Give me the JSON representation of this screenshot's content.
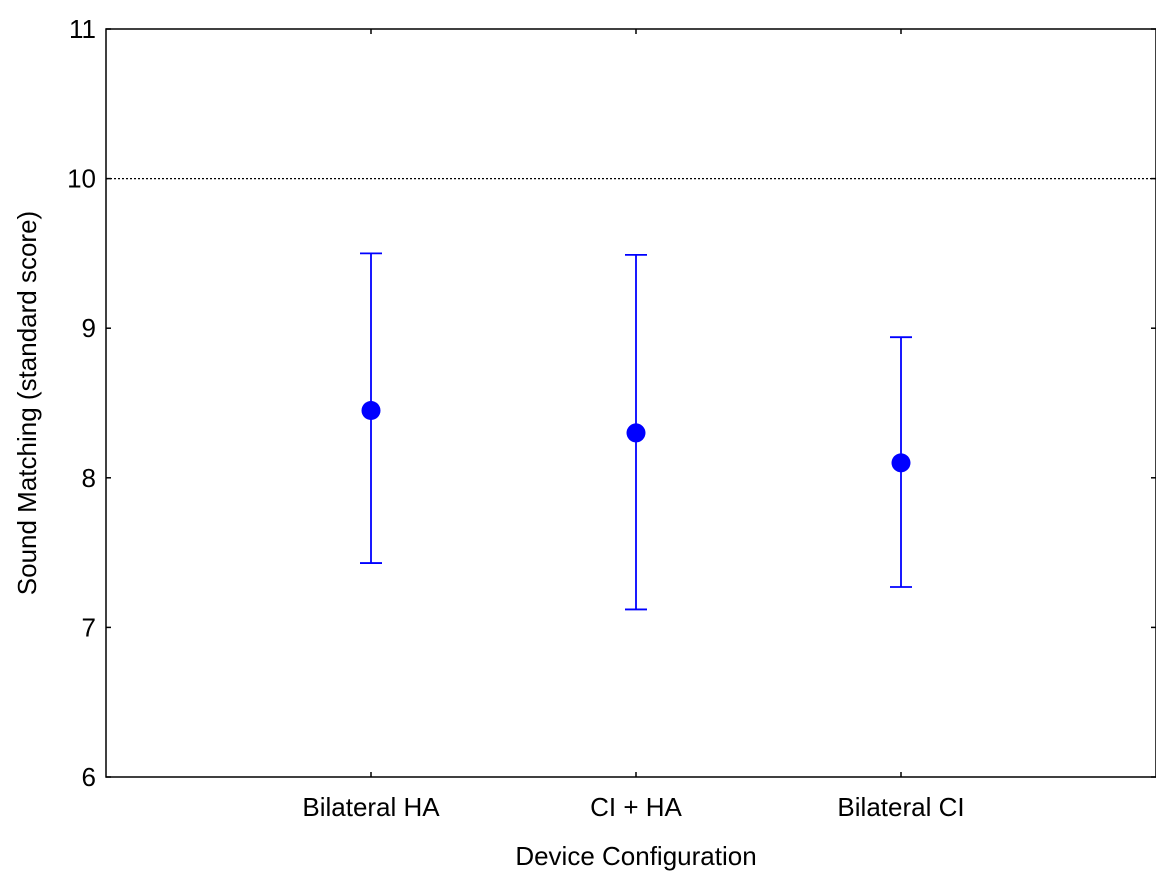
{
  "chart_data": {
    "type": "scatter",
    "title": "",
    "xlabel": "Device Configuration",
    "ylabel": "Sound Matching (standard score)",
    "categories": [
      "Bilateral HA",
      "CI + HA",
      "Bilateral CI"
    ],
    "ylim": [
      6,
      11
    ],
    "yticks": [
      "6",
      "7",
      "8",
      "9",
      "10",
      "11"
    ],
    "grid": false,
    "legend": "none",
    "series": [
      {
        "values": [
          8.45,
          8.3,
          8.1
        ],
        "error_low": [
          7.43,
          7.12,
          7.27
        ],
        "error_high": [
          9.5,
          9.49,
          8.94
        ],
        "color": "#0000ff"
      }
    ],
    "reference_line": {
      "y": 10,
      "style": "dotted",
      "color": "#000000"
    }
  }
}
